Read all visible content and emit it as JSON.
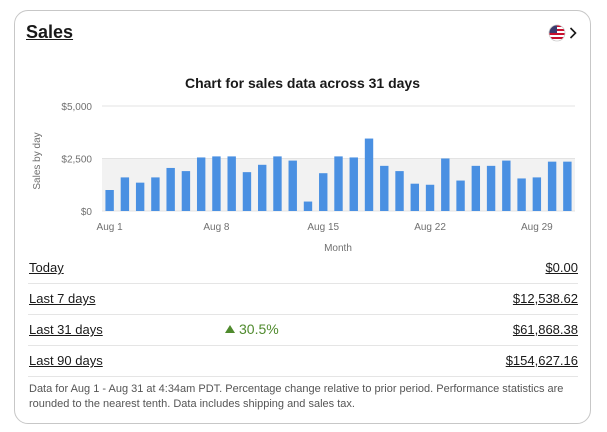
{
  "card": {
    "title": "Sales",
    "region_icon": "us-flag-icon",
    "chevron_icon": "chevron-right-icon"
  },
  "chart_data": {
    "type": "bar",
    "title": "Chart for sales data across 31 days",
    "xlabel": "Month",
    "ylabel": "Sales by day",
    "ylim": [
      0,
      5000
    ],
    "y_ticks": [
      "$0",
      "$2,500",
      "$5,000"
    ],
    "y_tick_values": [
      0,
      2500,
      5000
    ],
    "x_tick_labels": [
      {
        "index": 0,
        "label": "Aug 1"
      },
      {
        "index": 7,
        "label": "Aug 8"
      },
      {
        "index": 14,
        "label": "Aug 15"
      },
      {
        "index": 21,
        "label": "Aug 22"
      },
      {
        "index": 28,
        "label": "Aug 29"
      }
    ],
    "categories": [
      "Aug 1",
      "Aug 2",
      "Aug 3",
      "Aug 4",
      "Aug 5",
      "Aug 6",
      "Aug 7",
      "Aug 8",
      "Aug 9",
      "Aug 10",
      "Aug 11",
      "Aug 12",
      "Aug 13",
      "Aug 14",
      "Aug 15",
      "Aug 16",
      "Aug 17",
      "Aug 18",
      "Aug 19",
      "Aug 20",
      "Aug 21",
      "Aug 22",
      "Aug 23",
      "Aug 24",
      "Aug 25",
      "Aug 26",
      "Aug 27",
      "Aug 28",
      "Aug 29",
      "Aug 30",
      "Aug 31"
    ],
    "values": [
      1000,
      1600,
      1350,
      1600,
      2050,
      1900,
      2550,
      2600,
      2600,
      1850,
      2200,
      2600,
      2400,
      450,
      1800,
      2600,
      2550,
      3450,
      2150,
      1900,
      1300,
      1250,
      2500,
      1450,
      2150,
      2150,
      2400,
      1550,
      1600,
      2350,
      2350
    ],
    "colors": {
      "bar": "#4a90e2",
      "background_band": "#f2f2f2",
      "grid": "#e3e3e3"
    }
  },
  "rows": [
    {
      "label": "Today",
      "change": "",
      "amount": "$0.00"
    },
    {
      "label": "Last 7 days",
      "change": "",
      "amount": "$12,538.62"
    },
    {
      "label": "Last 31 days",
      "change": "30.5%",
      "change_icon": "up-arrow-icon",
      "amount": "$61,868.38"
    },
    {
      "label": "Last 90 days",
      "change": "",
      "amount": "$154,627.16"
    }
  ],
  "footnote": "Data for Aug 1 - Aug 31 at 4:34am PDT. Percentage change relative to prior period. Performance statistics are rounded to the nearest tenth. Data includes shipping and sales tax."
}
